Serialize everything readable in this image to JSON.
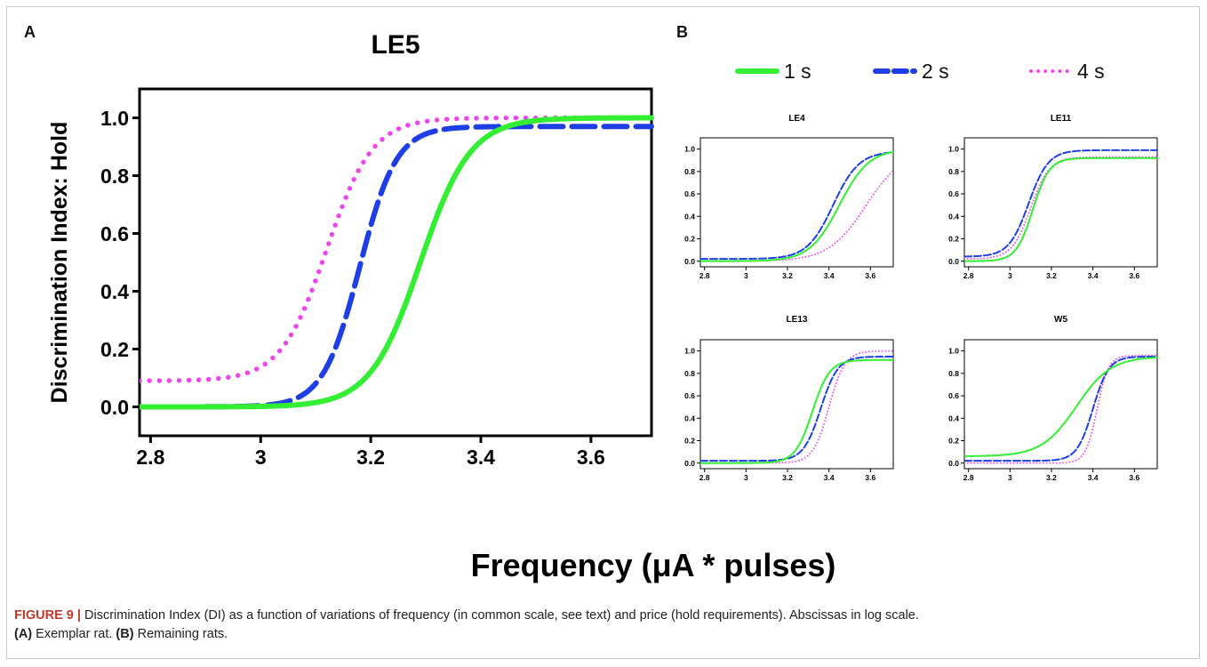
{
  "figure": {
    "panel_a_letter": "A",
    "panel_b_letter": "B",
    "shared_xlabel": "Frequency (μA * pulses)",
    "legend": [
      {
        "label": "1 s",
        "color": "#33ee33",
        "style": "solid"
      },
      {
        "label": "2 s",
        "color": "#1f3fe6",
        "style": "dashed"
      },
      {
        "label": "4 s",
        "color": "#ee44ee",
        "style": "dotted"
      }
    ]
  },
  "caption": {
    "figure_label": "FIGURE 9 |",
    "text": " Discrimination Index (DI) as a function of variations of frequency (in common scale, see text) and price (hold requirements). Abscissas in log scale.",
    "a_label": "(A)",
    "a_text": " Exemplar rat. ",
    "b_label": "(B)",
    "b_text": " Remaining rats."
  },
  "chart_data": [
    {
      "type": "line",
      "title": "LE5",
      "ylabel": "Discrimination Index: Hold",
      "xlabel": "",
      "xlim": [
        2.78,
        3.71
      ],
      "ylim": [
        -0.1,
        1.1
      ],
      "xticks": [
        2.8,
        3,
        3.2,
        3.4,
        3.6
      ],
      "xtick_labels": [
        "2.8",
        "3",
        "3.2",
        "3.4",
        "3.6"
      ],
      "yticks": [
        0,
        0.2,
        0.4,
        0.6,
        0.8,
        1.0
      ],
      "ytick_labels": [
        "0.0",
        "0.2",
        "0.4",
        "0.6",
        "0.8",
        "1.0"
      ],
      "series": [
        {
          "name": "1 s",
          "bottom": 0.0,
          "top": 1.0,
          "x50": 3.29,
          "slope": 22
        },
        {
          "name": "2 s",
          "bottom": 0.0,
          "top": 0.97,
          "x50": 3.18,
          "slope": 30
        },
        {
          "name": "4 s",
          "bottom": 0.09,
          "top": 1.0,
          "x50": 3.12,
          "slope": 24
        }
      ]
    },
    {
      "type": "line",
      "title": "LE4",
      "xlim": [
        2.78,
        3.71
      ],
      "ylim": [
        -0.05,
        1.1
      ],
      "xticks": [
        2.8,
        3,
        3.2,
        3.4,
        3.6
      ],
      "xtick_labels": [
        "2.8",
        "3",
        "3.2",
        "3.4",
        "3.6"
      ],
      "yticks": [
        0,
        0.2,
        0.4,
        0.6,
        0.8,
        1.0
      ],
      "ytick_labels": [
        "0.0",
        "0.2",
        "0.4",
        "0.6",
        "0.8",
        "1.0"
      ],
      "series": [
        {
          "name": "1 s",
          "bottom": 0.0,
          "top": 1.0,
          "x50": 3.45,
          "slope": 14
        },
        {
          "name": "2 s",
          "bottom": 0.02,
          "top": 0.98,
          "x50": 3.42,
          "slope": 16
        },
        {
          "name": "4 s",
          "bottom": 0.0,
          "top": 1.0,
          "x50": 3.58,
          "slope": 11
        }
      ]
    },
    {
      "type": "line",
      "title": "LE11",
      "xlim": [
        2.78,
        3.71
      ],
      "ylim": [
        -0.05,
        1.1
      ],
      "xticks": [
        2.8,
        3,
        3.2,
        3.4,
        3.6
      ],
      "xtick_labels": [
        "2.8",
        "3",
        "3.2",
        "3.4",
        "3.6"
      ],
      "yticks": [
        0,
        0.2,
        0.4,
        0.6,
        0.8,
        1.0
      ],
      "ytick_labels": [
        "0.0",
        "0.2",
        "0.4",
        "0.6",
        "0.8",
        "1.0"
      ],
      "series": [
        {
          "name": "1 s",
          "bottom": 0.0,
          "top": 0.92,
          "x50": 3.11,
          "slope": 25
        },
        {
          "name": "2 s",
          "bottom": 0.04,
          "top": 0.99,
          "x50": 3.09,
          "slope": 21
        },
        {
          "name": "4 s",
          "bottom": 0.02,
          "top": 0.93,
          "x50": 3.1,
          "slope": 22
        }
      ]
    },
    {
      "type": "line",
      "title": "LE13",
      "xlim": [
        2.78,
        3.71
      ],
      "ylim": [
        -0.05,
        1.1
      ],
      "xticks": [
        2.8,
        3,
        3.2,
        3.4,
        3.6
      ],
      "xtick_labels": [
        "2.8",
        "3",
        "3.2",
        "3.4",
        "3.6"
      ],
      "yticks": [
        0,
        0.2,
        0.4,
        0.6,
        0.8,
        1.0
      ],
      "ytick_labels": [
        "0.0",
        "0.2",
        "0.4",
        "0.6",
        "0.8",
        "1.0"
      ],
      "series": [
        {
          "name": "1 s",
          "bottom": 0.0,
          "top": 0.92,
          "x50": 3.32,
          "slope": 24
        },
        {
          "name": "2 s",
          "bottom": 0.02,
          "top": 0.95,
          "x50": 3.36,
          "slope": 24
        },
        {
          "name": "4 s",
          "bottom": 0.0,
          "top": 1.0,
          "x50": 3.4,
          "slope": 26
        }
      ]
    },
    {
      "type": "line",
      "title": "W5",
      "xlim": [
        2.78,
        3.71
      ],
      "ylim": [
        -0.05,
        1.1
      ],
      "xticks": [
        2.8,
        3,
        3.2,
        3.4,
        3.6
      ],
      "xtick_labels": [
        "2.8",
        "3",
        "3.2",
        "3.4",
        "3.6"
      ],
      "yticks": [
        0,
        0.2,
        0.4,
        0.6,
        0.8,
        1.0
      ],
      "ytick_labels": [
        "0.0",
        "0.2",
        "0.4",
        "0.6",
        "0.8",
        "1.0"
      ],
      "series": [
        {
          "name": "1 s",
          "bottom": 0.06,
          "top": 0.95,
          "x50": 3.32,
          "slope": 12
        },
        {
          "name": "2 s",
          "bottom": 0.02,
          "top": 0.95,
          "x50": 3.4,
          "slope": 26
        },
        {
          "name": "4 s",
          "bottom": 0.0,
          "top": 0.96,
          "x50": 3.42,
          "slope": 36
        }
      ]
    }
  ]
}
